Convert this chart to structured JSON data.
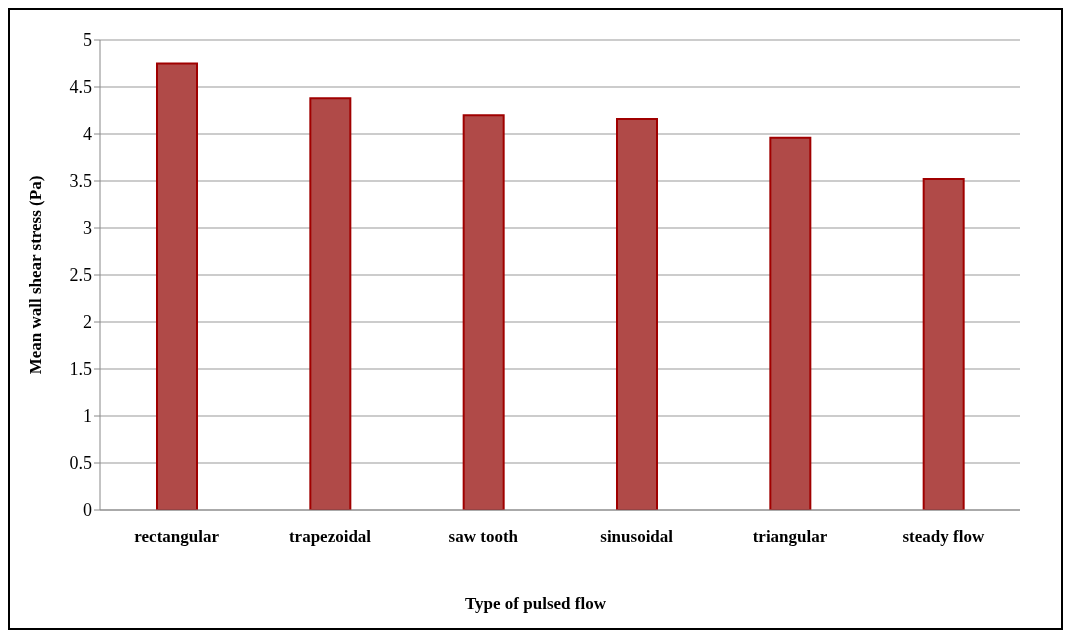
{
  "chart_data": {
    "type": "bar",
    "xlabel": "Type of pulsed flow",
    "ylabel": "Mean wall shear stress (Pa)",
    "categories": [
      "rectangular",
      "trapezoidal",
      "saw tooth",
      "sinusoidal",
      "triangular",
      "steady flow"
    ],
    "values": [
      4.75,
      4.38,
      4.2,
      4.16,
      3.96,
      3.52
    ],
    "color": "#b04a48",
    "ylim": [
      0,
      5
    ],
    "yticks": [
      0,
      0.5,
      1,
      1.5,
      2,
      2.5,
      3,
      3.5,
      4,
      4.5,
      5
    ],
    "grid": true
  }
}
